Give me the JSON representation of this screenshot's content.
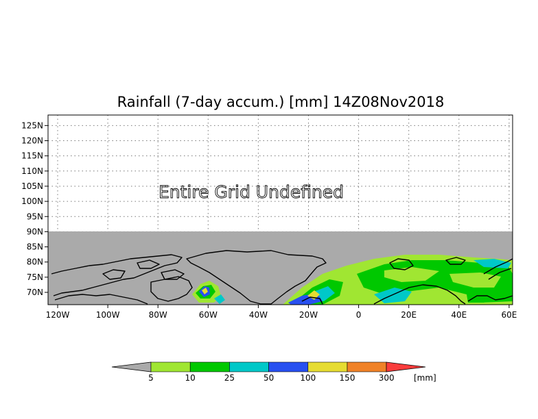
{
  "title": "Rainfall (7-day accum.) [mm] 14Z08Nov2018",
  "annotation": "Entire Grid Undefined",
  "map": {
    "lat_ticks": [
      "125N",
      "120N",
      "115N",
      "110N",
      "105N",
      "100N",
      "95N",
      "90N",
      "85N",
      "80N",
      "75N",
      "70N"
    ],
    "lon_ticks": [
      "120W",
      "100W",
      "80W",
      "60W",
      "40W",
      "20W",
      "0",
      "20E",
      "40E",
      "60E"
    ],
    "undefined_color": "#aaaaaa",
    "grid": "dotted"
  },
  "colorbar": {
    "unit": "[mm]",
    "labels": [
      "5",
      "10",
      "25",
      "50",
      "100",
      "150",
      "300"
    ],
    "colors": [
      "#aaaaaa",
      "#a0e632",
      "#00c800",
      "#00c8c8",
      "#2850f0",
      "#e6dc32",
      "#f08228",
      "#fa3c3c"
    ]
  }
}
